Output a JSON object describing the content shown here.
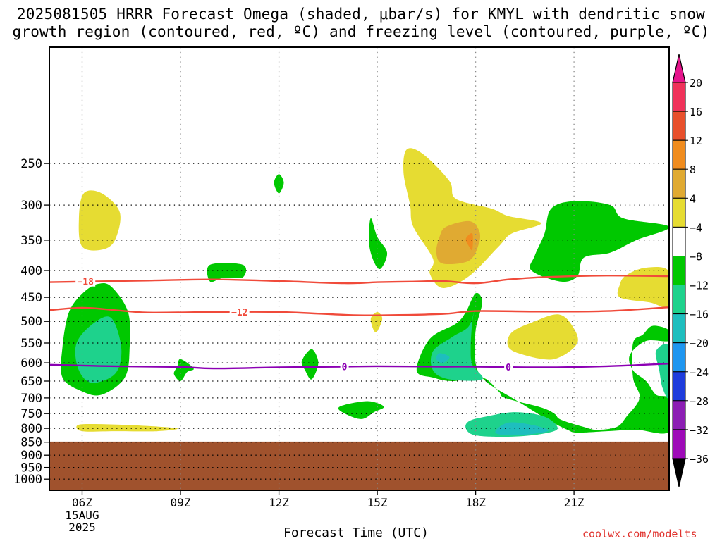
{
  "title_line1": "2025081505 HRRR Forecast Omega (shaded, μbar/s) for KMYL with dendritic snow",
  "title_line2": "growth region (contoured, red, ºC) and freezing level (contoured, purple, ºC)",
  "xlabel": "Forecast Time (UTC)",
  "watermark": "coolwx.com/modelts",
  "chart_data": {
    "type": "contour",
    "title": "2025081505 HRRR Forecast Omega (shaded, μbar/s) for KMYL with dendritic snow growth region (contoured, red, ºC) and freezing level (contoured, purple, ºC)",
    "xlabel": "Forecast Time (UTC)",
    "ylabel": "",
    "xlim": [
      5.0,
      23.9
    ],
    "ylim": [
      1050,
      150
    ],
    "y_scale": "log",
    "grid": true,
    "x_ticks": [
      {
        "value": 6,
        "label": "06Z",
        "sub": [
          "15AUG",
          "2025"
        ]
      },
      {
        "value": 9,
        "label": "09Z"
      },
      {
        "value": 12,
        "label": "12Z"
      },
      {
        "value": 15,
        "label": "15Z"
      },
      {
        "value": 18,
        "label": "18Z"
      },
      {
        "value": 21,
        "label": "21Z"
      }
    ],
    "y_ticks": [
      250,
      300,
      350,
      400,
      450,
      500,
      550,
      600,
      650,
      700,
      750,
      800,
      850,
      900,
      950,
      1000
    ],
    "below_ground_pressure": 848,
    "colors": {
      "ground": "#a0522d",
      "dgz": "#f04a3a",
      "freezing": "#8c00b4",
      "text": "#000000"
    },
    "colorbar": {
      "labels": [
        "20",
        "16",
        "12",
        "8",
        "4",
        "-4",
        "-8",
        "-12",
        "-16",
        "-20",
        "-24",
        "-28",
        "-32",
        "-36"
      ],
      "colors": [
        "#f0325a",
        "#e8502c",
        "#f08c1e",
        "#e0aa32",
        "#e6dc32",
        "#ffffff",
        "#00c800",
        "#1ed28c",
        "#1ebebe",
        "#1e96f0",
        "#1e3cdc",
        "#8c1eb4",
        "#9e0ab8",
        "#aaaaaa"
      ],
      "top_arrow_color": "#e6148c",
      "bottom_arrow_color": "#000000"
    },
    "contours": [
      {
        "name": "-18",
        "color": "#f04a3a",
        "label_at": 6.1,
        "points": [
          [
            5.0,
            421
          ],
          [
            6.0,
            420
          ],
          [
            8.0,
            418
          ],
          [
            10.0,
            416
          ],
          [
            12.0,
            419
          ],
          [
            14.0,
            423
          ],
          [
            15.0,
            421
          ],
          [
            16.0,
            420
          ],
          [
            17.0,
            419
          ],
          [
            18.0,
            423
          ],
          [
            19.0,
            416
          ],
          [
            20.0,
            412
          ],
          [
            22.0,
            409
          ],
          [
            23.9,
            410
          ]
        ]
      },
      {
        "name": "-12",
        "color": "#f04a3a",
        "label_at": 10.8,
        "points": [
          [
            5.0,
            476
          ],
          [
            6.0,
            471
          ],
          [
            7.0,
            476
          ],
          [
            8.0,
            481
          ],
          [
            10.0,
            480
          ],
          [
            12.0,
            480
          ],
          [
            14.0,
            486
          ],
          [
            15.0,
            487
          ],
          [
            17.0,
            484
          ],
          [
            18.0,
            478
          ],
          [
            20.0,
            479
          ],
          [
            22.0,
            478
          ],
          [
            23.9,
            470
          ]
        ]
      },
      {
        "name": "0",
        "color": "#8c00b4",
        "label_at": [
          14.0,
          19.0
        ],
        "points": [
          [
            5.0,
            605
          ],
          [
            6.0,
            607
          ],
          [
            7.0,
            609
          ],
          [
            9.0,
            611
          ],
          [
            10.0,
            615
          ],
          [
            12.0,
            612
          ],
          [
            14.0,
            610
          ],
          [
            15.0,
            609
          ],
          [
            17.0,
            610
          ],
          [
            18.0,
            610
          ],
          [
            20.0,
            612
          ],
          [
            22.0,
            609
          ],
          [
            23.9,
            602
          ]
        ]
      }
    ],
    "omega_regions": [
      {
        "level": "4 to 8",
        "color": "#e6dc32",
        "points": [
          [
            6.05,
            285
          ],
          [
            6.6,
            285
          ],
          [
            7.15,
            310
          ],
          [
            7.0,
            350
          ],
          [
            6.6,
            365
          ],
          [
            6.0,
            360
          ],
          [
            5.9,
            320
          ]
        ]
      },
      {
        "level": "4 to 8",
        "color": "#e6dc32",
        "points": [
          [
            5.85,
            790
          ],
          [
            6.3,
            785
          ],
          [
            7.7,
            790
          ],
          [
            8.9,
            800
          ],
          [
            8.3,
            810
          ],
          [
            7.0,
            810
          ],
          [
            6.0,
            810
          ]
        ]
      },
      {
        "level": "-4 to -8",
        "color": "#00c800",
        "points": [
          [
            6.5,
            424
          ],
          [
            6.9,
            430
          ],
          [
            7.4,
            480
          ],
          [
            7.45,
            560
          ],
          [
            7.3,
            640
          ],
          [
            6.6,
            690
          ],
          [
            6.0,
            680
          ],
          [
            5.4,
            640
          ],
          [
            5.4,
            560
          ],
          [
            5.6,
            480
          ],
          [
            6.05,
            440
          ]
        ]
      },
      {
        "level": "-8 to -12",
        "color": "#1ed28c",
        "points": [
          [
            6.7,
            490
          ],
          [
            7.0,
            505
          ],
          [
            7.2,
            570
          ],
          [
            7.0,
            630
          ],
          [
            6.3,
            655
          ],
          [
            5.9,
            620
          ],
          [
            5.8,
            560
          ],
          [
            6.1,
            520
          ]
        ]
      },
      {
        "level": "-4 to -8",
        "color": "#00c800",
        "points": [
          [
            12.0,
            262
          ],
          [
            12.15,
            272
          ],
          [
            12.0,
            285
          ],
          [
            11.85,
            272
          ]
        ]
      },
      {
        "level": "-4 to -8",
        "color": "#00c800",
        "points": [
          [
            9.9,
            390
          ],
          [
            10.9,
            390
          ],
          [
            10.9,
            412
          ],
          [
            10.3,
            413
          ],
          [
            9.9,
            420
          ]
        ]
      },
      {
        "level": "-4 to -8",
        "color": "#00c800",
        "points": [
          [
            14.8,
            318
          ],
          [
            15.0,
            345
          ],
          [
            15.3,
            370
          ],
          [
            15.1,
            397
          ],
          [
            14.9,
            385
          ],
          [
            14.75,
            355
          ]
        ]
      },
      {
        "level": "-4 to -8",
        "color": "#00c800",
        "points": [
          [
            13.0,
            565
          ],
          [
            13.2,
            600
          ],
          [
            13.0,
            645
          ],
          [
            12.8,
            620
          ],
          [
            12.7,
            595
          ]
        ]
      },
      {
        "level": "-4 to -8",
        "color": "#00c800",
        "points": [
          [
            9.0,
            590
          ],
          [
            9.4,
            615
          ],
          [
            9.2,
            625
          ],
          [
            9.0,
            650
          ],
          [
            8.8,
            630
          ],
          [
            8.9,
            610
          ]
        ]
      },
      {
        "level": "-4 to -8",
        "color": "#00c800",
        "points": [
          [
            13.9,
            725
          ],
          [
            14.7,
            710
          ],
          [
            15.2,
            727
          ],
          [
            14.9,
            745
          ],
          [
            14.5,
            768
          ],
          [
            13.9,
            743
          ]
        ]
      },
      {
        "level": "4 to 8",
        "color": "#e6dc32",
        "points": [
          [
            15.0,
            480
          ],
          [
            15.15,
            495
          ],
          [
            14.95,
            525
          ],
          [
            14.8,
            495
          ]
        ]
      },
      {
        "level": "4 to 8",
        "color": "#e6dc32",
        "points": [
          [
            15.9,
            235
          ],
          [
            16.4,
            240
          ],
          [
            17.2,
            270
          ],
          [
            17.4,
            292
          ],
          [
            18.5,
            305
          ],
          [
            19.0,
            315
          ],
          [
            20.0,
            325
          ],
          [
            19.1,
            340
          ],
          [
            18.7,
            360
          ],
          [
            17.8,
            410
          ],
          [
            17.0,
            432
          ],
          [
            16.6,
            405
          ],
          [
            16.7,
            380
          ],
          [
            16.1,
            330
          ],
          [
            16.0,
            300
          ],
          [
            15.8,
            260
          ]
        ]
      },
      {
        "level": "8 to 12",
        "color": "#e0aa32",
        "points": [
          [
            17.1,
            330
          ],
          [
            17.8,
            322
          ],
          [
            18.1,
            335
          ],
          [
            18.1,
            355
          ],
          [
            17.8,
            383
          ],
          [
            17.0,
            388
          ],
          [
            16.8,
            370
          ],
          [
            16.9,
            345
          ]
        ]
      },
      {
        "level": "12 to 16",
        "color": "#f08c1e",
        "points": [
          [
            17.9,
            340
          ],
          [
            17.9,
            365
          ],
          [
            17.8,
            360
          ],
          [
            17.7,
            348
          ]
        ]
      },
      {
        "level": "-4 to -8",
        "color": "#00c800",
        "points": [
          [
            21.0,
            295
          ],
          [
            22.1,
            300
          ],
          [
            22.5,
            318
          ],
          [
            23.9,
            330
          ],
          [
            22.9,
            350
          ],
          [
            22.1,
            370
          ],
          [
            21.3,
            378
          ],
          [
            21.1,
            410
          ],
          [
            20.6,
            420
          ],
          [
            19.7,
            400
          ],
          [
            19.8,
            375
          ],
          [
            20.1,
            340
          ],
          [
            20.3,
            305
          ]
        ]
      },
      {
        "level": "4 to 8",
        "color": "#e6dc32",
        "points": [
          [
            23.2,
            395
          ],
          [
            23.9,
            402
          ],
          [
            23.9,
            467
          ],
          [
            23.3,
            460
          ],
          [
            22.4,
            450
          ],
          [
            22.4,
            425
          ],
          [
            22.6,
            408
          ]
        ]
      },
      {
        "level": "4 to 8",
        "color": "#e6dc32",
        "points": [
          [
            20.5,
            485
          ],
          [
            20.9,
            505
          ],
          [
            21.1,
            550
          ],
          [
            20.4,
            590
          ],
          [
            19.5,
            580
          ],
          [
            19.0,
            560
          ],
          [
            19.1,
            525
          ],
          [
            19.8,
            500
          ]
        ]
      },
      {
        "level": "-4 to -8",
        "color": "#00c800",
        "points": [
          [
            18.0,
            442
          ],
          [
            18.2,
            460
          ],
          [
            18.0,
            520
          ],
          [
            18.0,
            600
          ],
          [
            18.3,
            650
          ],
          [
            19.2,
            705
          ],
          [
            20.2,
            770
          ],
          [
            20.8,
            805
          ],
          [
            21.1,
            815
          ],
          [
            22.0,
            810
          ],
          [
            22.9,
            805
          ],
          [
            23.9,
            812
          ],
          [
            23.9,
            705
          ],
          [
            23.5,
            690
          ],
          [
            23.2,
            650
          ],
          [
            22.8,
            620
          ],
          [
            22.7,
            580
          ],
          [
            23.2,
            545
          ],
          [
            23.9,
            545
          ],
          [
            23.9,
            520
          ],
          [
            23.4,
            510
          ],
          [
            23.1,
            530
          ],
          [
            22.8,
            550
          ],
          [
            22.8,
            640
          ],
          [
            23.0,
            700
          ],
          [
            22.6,
            760
          ],
          [
            22.3,
            795
          ],
          [
            21.7,
            805
          ],
          [
            21.3,
            795
          ],
          [
            20.6,
            770
          ],
          [
            20.4,
            750
          ],
          [
            20.0,
            730
          ],
          [
            18.9,
            700
          ],
          [
            18.7,
            680
          ],
          [
            18.2,
            640
          ],
          [
            17.3,
            650
          ],
          [
            16.7,
            640
          ],
          [
            16.2,
            620
          ],
          [
            16.6,
            540
          ],
          [
            17.4,
            505
          ],
          [
            17.7,
            480
          ]
        ]
      },
      {
        "level": "-8 to -12",
        "color": "#1ed28c",
        "points": [
          [
            18.0,
            465
          ],
          [
            17.9,
            500
          ],
          [
            17.85,
            560
          ],
          [
            17.9,
            605
          ],
          [
            18.2,
            645
          ],
          [
            17.2,
            645
          ],
          [
            16.7,
            620
          ],
          [
            16.7,
            570
          ],
          [
            17.3,
            535
          ],
          [
            17.8,
            510
          ]
        ]
      },
      {
        "level": "-12 to -16",
        "color": "#1ebebe",
        "points": [
          [
            16.9,
            575
          ],
          [
            17.2,
            585
          ],
          [
            17.0,
            600
          ],
          [
            16.8,
            590
          ]
        ]
      },
      {
        "level": "-8 to -12",
        "color": "#1ed28c",
        "points": [
          [
            18.3,
            760
          ],
          [
            19.2,
            745
          ],
          [
            20.1,
            760
          ],
          [
            20.5,
            800
          ],
          [
            20.0,
            820
          ],
          [
            19.0,
            830
          ],
          [
            18.0,
            825
          ],
          [
            17.7,
            800
          ],
          [
            17.8,
            775
          ]
        ]
      },
      {
        "level": "-12 to -16",
        "color": "#1ebebe",
        "points": [
          [
            19.0,
            780
          ],
          [
            19.8,
            790
          ],
          [
            20.2,
            810
          ],
          [
            19.2,
            825
          ],
          [
            18.6,
            815
          ]
        ]
      },
      {
        "level": "-8 to -12",
        "color": "#1ed28c",
        "points": [
          [
            23.5,
            570
          ],
          [
            23.9,
            560
          ],
          [
            23.9,
            695
          ],
          [
            23.7,
            670
          ],
          [
            23.6,
            620
          ]
        ]
      }
    ]
  }
}
